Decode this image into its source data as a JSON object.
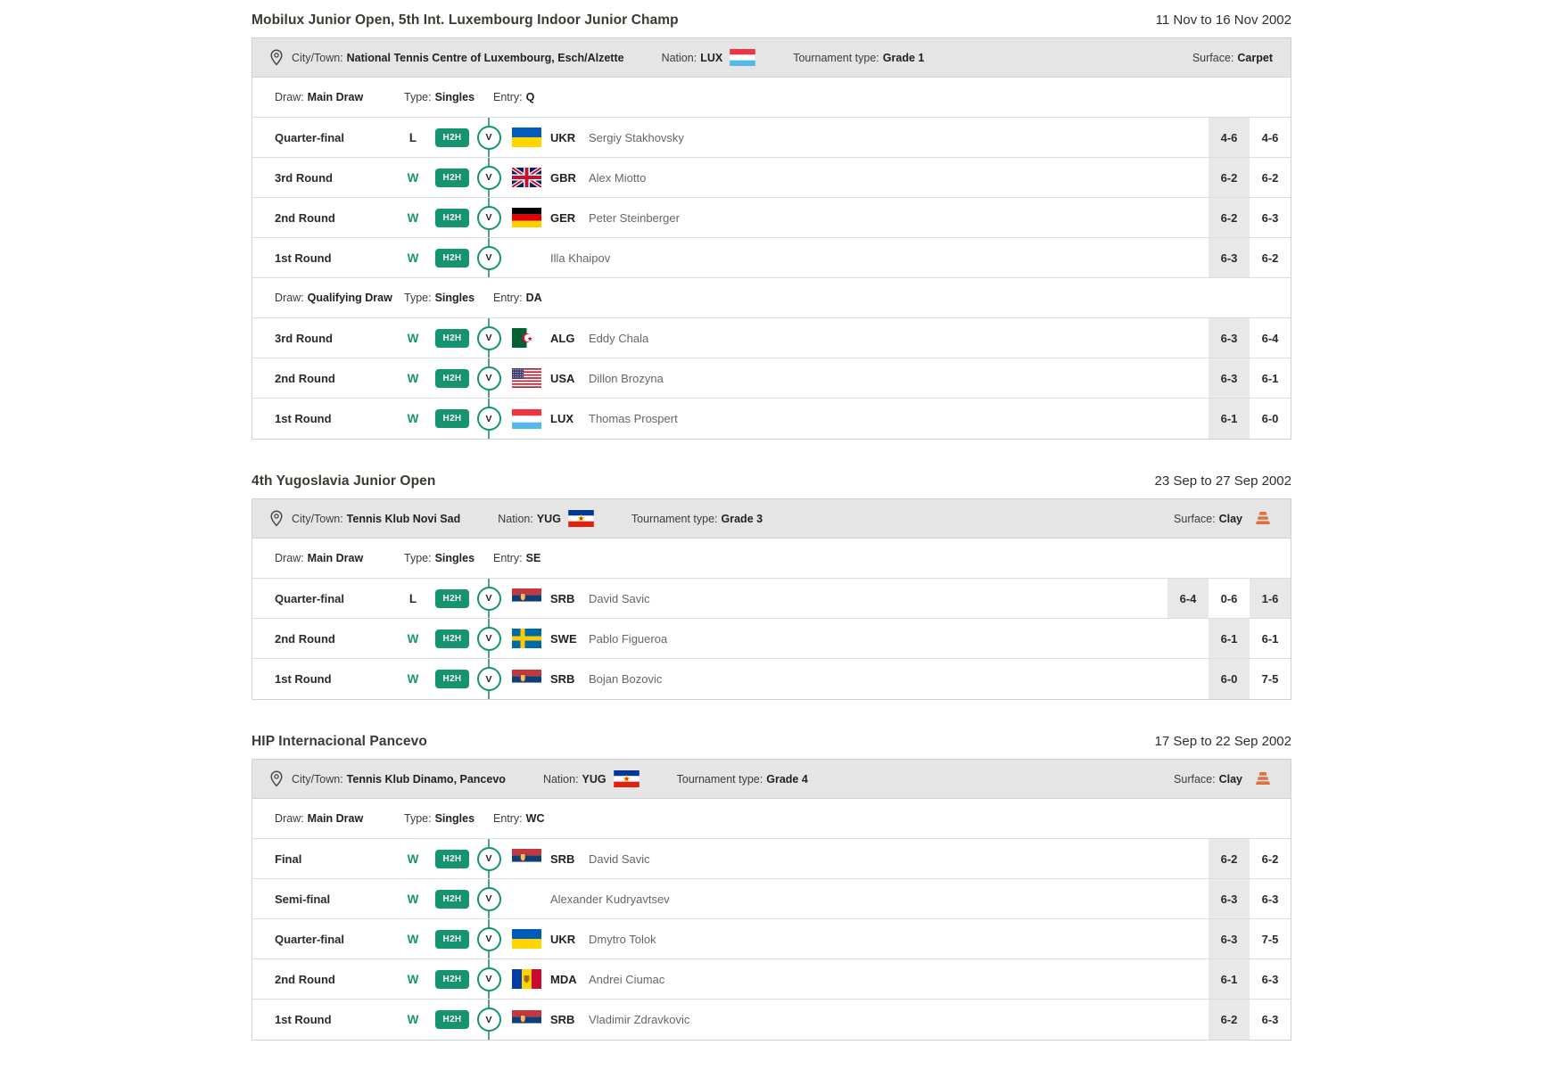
{
  "labels": {
    "city": "City/Town:",
    "nation": "Nation:",
    "tournament_type": "Tournament type:",
    "surface": "Surface:",
    "draw": "Draw:",
    "match_type": "Type:",
    "entry": "Entry:",
    "h2h": "H2H",
    "versus": "V"
  },
  "colors": {
    "accent_teal": "#16946f",
    "connector_line": "#4aa392",
    "score_alt_bg": "#e8e8e8",
    "info_bar_bg": "#e5e5e5",
    "clay_icon": "#df7140"
  },
  "tournaments": [
    {
      "title": "Mobilux Junior Open, 5th Int. Luxembourg Indoor Junior Champ",
      "dates": "11 Nov to 16 Nov 2002",
      "city": "National Tennis Centre of Luxembourg, Esch/Alzette",
      "nation_code": "LUX",
      "nation_flag": "LUX",
      "tournament_type": "Grade 1",
      "surface": "Carpet",
      "surface_icon": null,
      "draws": [
        {
          "draw": "Main Draw",
          "type": "Singles",
          "entry": "Q",
          "rows": [
            {
              "round": "Quarter-final",
              "result": "L",
              "flag": "UKR",
              "code": "UKR",
              "player": "Sergiy Stakhovsky",
              "scores": [
                "4-6",
                "4-6"
              ]
            },
            {
              "round": "3rd Round",
              "result": "W",
              "flag": "GBR",
              "code": "GBR",
              "player": "Alex Miotto",
              "scores": [
                "6-2",
                "6-2"
              ]
            },
            {
              "round": "2nd Round",
              "result": "W",
              "flag": "GER",
              "code": "GER",
              "player": "Peter Steinberger",
              "scores": [
                "6-2",
                "6-3"
              ]
            },
            {
              "round": "1st Round",
              "result": "W",
              "flag": null,
              "code": "",
              "player": "Illa Khaipov",
              "scores": [
                "6-3",
                "6-2"
              ]
            }
          ]
        },
        {
          "draw": "Qualifying Draw",
          "type": "Singles",
          "entry": "DA",
          "rows": [
            {
              "round": "3rd Round",
              "result": "W",
              "flag": "ALG",
              "code": "ALG",
              "player": "Eddy Chala",
              "scores": [
                "6-3",
                "6-4"
              ]
            },
            {
              "round": "2nd Round",
              "result": "W",
              "flag": "USA",
              "code": "USA",
              "player": "Dillon Brozyna",
              "scores": [
                "6-3",
                "6-1"
              ]
            },
            {
              "round": "1st Round",
              "result": "W",
              "flag": "LUX",
              "code": "LUX",
              "player": "Thomas Prospert",
              "scores": [
                "6-1",
                "6-0"
              ]
            }
          ]
        }
      ]
    },
    {
      "title": "4th Yugoslavia Junior Open",
      "dates": "23 Sep to 27 Sep 2002",
      "city": "Tennis Klub Novi Sad",
      "nation_code": "YUG",
      "nation_flag": "YUG",
      "tournament_type": "Grade 3",
      "surface": "Clay",
      "surface_icon": "clay",
      "draws": [
        {
          "draw": "Main Draw",
          "type": "Singles",
          "entry": "SE",
          "rows": [
            {
              "round": "Quarter-final",
              "result": "L",
              "flag": "SRB",
              "code": "SRB",
              "player": "David Savic",
              "scores": [
                "6-4",
                "0-6",
                "1-6"
              ]
            },
            {
              "round": "2nd Round",
              "result": "W",
              "flag": "SWE",
              "code": "SWE",
              "player": "Pablo Figueroa",
              "scores": [
                "6-1",
                "6-1"
              ]
            },
            {
              "round": "1st Round",
              "result": "W",
              "flag": "SRB",
              "code": "SRB",
              "player": "Bojan Bozovic",
              "scores": [
                "6-0",
                "7-5"
              ]
            }
          ]
        }
      ]
    },
    {
      "title": "HIP Internacional Pancevo",
      "dates": "17 Sep to 22 Sep 2002",
      "city": "Tennis Klub Dinamo, Pancevo",
      "nation_code": "YUG",
      "nation_flag": "YUG",
      "tournament_type": "Grade 4",
      "surface": "Clay",
      "surface_icon": "clay",
      "draws": [
        {
          "draw": "Main Draw",
          "type": "Singles",
          "entry": "WC",
          "rows": [
            {
              "round": "Final",
              "result": "W",
              "flag": "SRB",
              "code": "SRB",
              "player": "David Savic",
              "scores": [
                "6-2",
                "6-2"
              ]
            },
            {
              "round": "Semi-final",
              "result": "W",
              "flag": null,
              "code": "",
              "player": "Alexander Kudryavtsev",
              "scores": [
                "6-3",
                "6-3"
              ]
            },
            {
              "round": "Quarter-final",
              "result": "W",
              "flag": "UKR",
              "code": "UKR",
              "player": "Dmytro Tolok",
              "scores": [
                "6-3",
                "7-5"
              ]
            },
            {
              "round": "2nd Round",
              "result": "W",
              "flag": "MDA",
              "code": "MDA",
              "player": "Andrei Ciumac",
              "scores": [
                "6-1",
                "6-3"
              ]
            },
            {
              "round": "1st Round",
              "result": "W",
              "flag": "SRB",
              "code": "SRB",
              "player": "Vladimir Zdravkovic",
              "scores": [
                "6-2",
                "6-3"
              ]
            }
          ]
        }
      ]
    }
  ]
}
